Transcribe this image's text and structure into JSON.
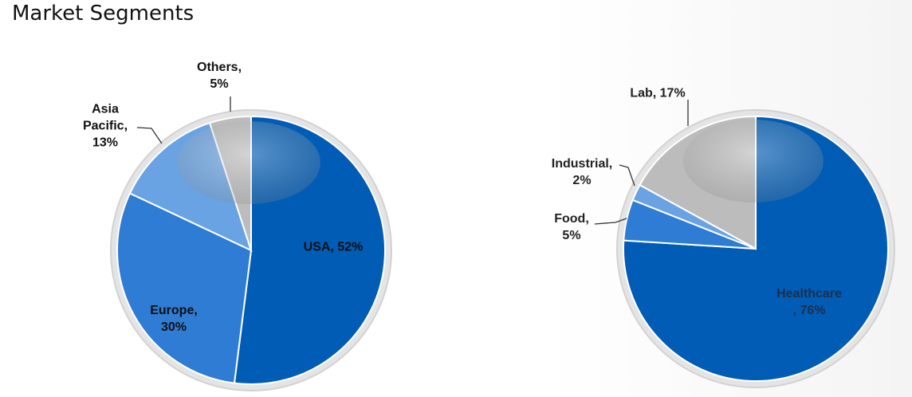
{
  "title": "Market Segments",
  "chart_data": [
    {
      "type": "pie",
      "values": [
        52,
        30,
        13,
        5
      ],
      "value_labels": [
        "USA, 52%",
        "Europe,\n30%",
        "Asia\nPacific,\n13%",
        "Others,\n5%"
      ],
      "colors": [
        "#005cb5",
        "#2f7cd4",
        "#69a3e4",
        "#bcbcbc"
      ]
    },
    {
      "type": "pie",
      "values": [
        76,
        5,
        2,
        17
      ],
      "value_labels": [
        "Healthcare\n, 76%",
        "Food,\n5%",
        "Industrial,\n2%",
        "Lab, 17%"
      ],
      "colors": [
        "#005cb5",
        "#2f7cd4",
        "#69a3e4",
        "#bcbcbc"
      ]
    }
  ]
}
